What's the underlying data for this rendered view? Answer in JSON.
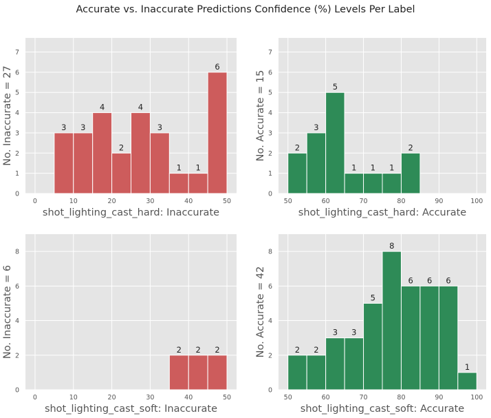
{
  "title": "Accurate vs. Inaccurate Predictions Confidence (%) Levels Per Label",
  "colors": {
    "inaccurate": "#cd5c5c",
    "accurate": "#2e8b57",
    "panel_bg": "#e5e5e5",
    "grid": "#ffffff"
  },
  "chart_data": [
    {
      "type": "bar",
      "title": "",
      "xlabel": "shot_lighting_cast_hard: Inaccurate",
      "ylabel": "No. Inaccurate = 27",
      "color": "#cd5c5c",
      "xlim": [
        -2.5,
        52.5
      ],
      "ylim": [
        0,
        7.7
      ],
      "xticks": [
        0,
        10,
        20,
        30,
        40,
        50
      ],
      "yticks": [
        0,
        1,
        2,
        3,
        4,
        5,
        6,
        7
      ],
      "bin_edges": [
        5,
        10,
        15,
        20,
        25,
        30,
        35,
        40,
        45,
        50
      ],
      "values": [
        3,
        3,
        4,
        2,
        4,
        3,
        1,
        1,
        6
      ]
    },
    {
      "type": "bar",
      "title": "",
      "xlabel": "shot_lighting_cast_hard: Accurate",
      "ylabel": "No. Accurate = 15",
      "color": "#2e8b57",
      "xlim": [
        47.5,
        102.5
      ],
      "ylim": [
        0,
        7.7
      ],
      "xticks": [
        50,
        60,
        70,
        80,
        90,
        100
      ],
      "yticks": [
        0,
        1,
        2,
        3,
        4,
        5,
        6,
        7
      ],
      "bin_edges": [
        50,
        55,
        60,
        65,
        70,
        75,
        80,
        85
      ],
      "values": [
        2,
        3,
        5,
        1,
        1,
        1,
        2
      ]
    },
    {
      "type": "bar",
      "title": "",
      "xlabel": "shot_lighting_cast_soft: Inaccurate",
      "ylabel": "No. Inaccurate = 6",
      "color": "#cd5c5c",
      "xlim": [
        -2.5,
        52.5
      ],
      "ylim": [
        0,
        9
      ],
      "xticks": [
        0,
        10,
        20,
        30,
        40,
        50
      ],
      "yticks": [
        0,
        2,
        4,
        6,
        8
      ],
      "bin_edges": [
        35,
        40,
        45,
        50
      ],
      "values": [
        2,
        2,
        2
      ]
    },
    {
      "type": "bar",
      "title": "",
      "xlabel": "shot_lighting_cast_soft: Accurate",
      "ylabel": "No. Accurate = 42",
      "color": "#2e8b57",
      "xlim": [
        47.5,
        102.5
      ],
      "ylim": [
        0,
        9
      ],
      "xticks": [
        50,
        60,
        70,
        80,
        90,
        100
      ],
      "yticks": [
        0,
        2,
        4,
        6,
        8
      ],
      "bin_edges": [
        50,
        55,
        60,
        65,
        70,
        75,
        80,
        85,
        90,
        95,
        100
      ],
      "values": [
        2,
        2,
        3,
        3,
        5,
        8,
        6,
        6,
        6,
        1
      ]
    }
  ]
}
